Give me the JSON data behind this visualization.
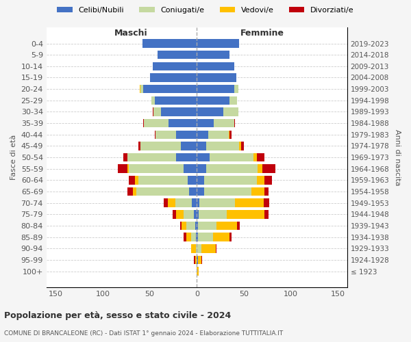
{
  "age_groups": [
    "100+",
    "95-99",
    "90-94",
    "85-89",
    "80-84",
    "75-79",
    "70-74",
    "65-69",
    "60-64",
    "55-59",
    "50-54",
    "45-49",
    "40-44",
    "35-39",
    "30-34",
    "25-29",
    "20-24",
    "15-19",
    "10-14",
    "5-9",
    "0-4"
  ],
  "birth_years": [
    "≤ 1923",
    "1924-1928",
    "1929-1933",
    "1934-1938",
    "1939-1943",
    "1944-1948",
    "1949-1953",
    "1954-1958",
    "1959-1963",
    "1964-1968",
    "1969-1973",
    "1974-1978",
    "1979-1983",
    "1984-1988",
    "1989-1993",
    "1994-1998",
    "1999-2003",
    "2004-2008",
    "2009-2013",
    "2014-2018",
    "2019-2023"
  ],
  "colors": {
    "celibe": "#4472c4",
    "coniugato": "#c5d9a0",
    "vedovo": "#ffc000",
    "divorziato": "#c0000c"
  },
  "maschi": {
    "celibe": [
      0,
      0,
      0,
      1,
      2,
      3,
      5,
      8,
      10,
      14,
      22,
      17,
      22,
      30,
      38,
      45,
      57,
      50,
      47,
      42,
      58
    ],
    "coniugato": [
      0,
      0,
      1,
      5,
      9,
      11,
      18,
      56,
      52,
      58,
      52,
      43,
      22,
      26,
      8,
      3,
      3,
      0,
      0,
      0,
      0
    ],
    "vedovo": [
      0,
      2,
      5,
      5,
      5,
      8,
      8,
      4,
      4,
      2,
      0,
      0,
      0,
      0,
      0,
      0,
      1,
      0,
      0,
      0,
      0
    ],
    "divorziato": [
      0,
      1,
      0,
      3,
      2,
      4,
      4,
      6,
      6,
      10,
      4,
      2,
      1,
      1,
      1,
      0,
      0,
      0,
      0,
      0,
      0
    ]
  },
  "femmine": {
    "celibe": [
      0,
      1,
      0,
      1,
      1,
      2,
      3,
      8,
      8,
      10,
      14,
      10,
      12,
      18,
      28,
      35,
      40,
      42,
      40,
      35,
      45
    ],
    "coniugato": [
      0,
      0,
      5,
      16,
      20,
      30,
      38,
      50,
      56,
      55,
      46,
      35,
      22,
      22,
      16,
      8,
      4,
      0,
      0,
      0,
      0
    ],
    "vedovo": [
      2,
      4,
      15,
      18,
      22,
      40,
      30,
      14,
      8,
      5,
      4,
      2,
      1,
      0,
      0,
      0,
      0,
      0,
      0,
      0,
      0
    ],
    "divorziato": [
      0,
      1,
      1,
      2,
      3,
      4,
      6,
      4,
      8,
      14,
      8,
      3,
      2,
      1,
      0,
      0,
      0,
      0,
      0,
      0,
      0
    ]
  },
  "title": "Popolazione per età, sesso e stato civile - 2024",
  "subtitle": "COMUNE DI BRANCALEONE (RC) - Dati ISTAT 1° gennaio 2024 - Elaborazione TUTTITALIA.IT",
  "xlabel_left": "Maschi",
  "xlabel_right": "Femmine",
  "ylabel_left": "Fasce di età",
  "ylabel_right": "Anni di nascita",
  "xlim": 160,
  "legend_labels": [
    "Celibi/Nubili",
    "Coniugati/e",
    "Vedovi/e",
    "Divorziati/e"
  ],
  "bg_color": "#f5f5f5",
  "plot_bg_color": "#ffffff"
}
